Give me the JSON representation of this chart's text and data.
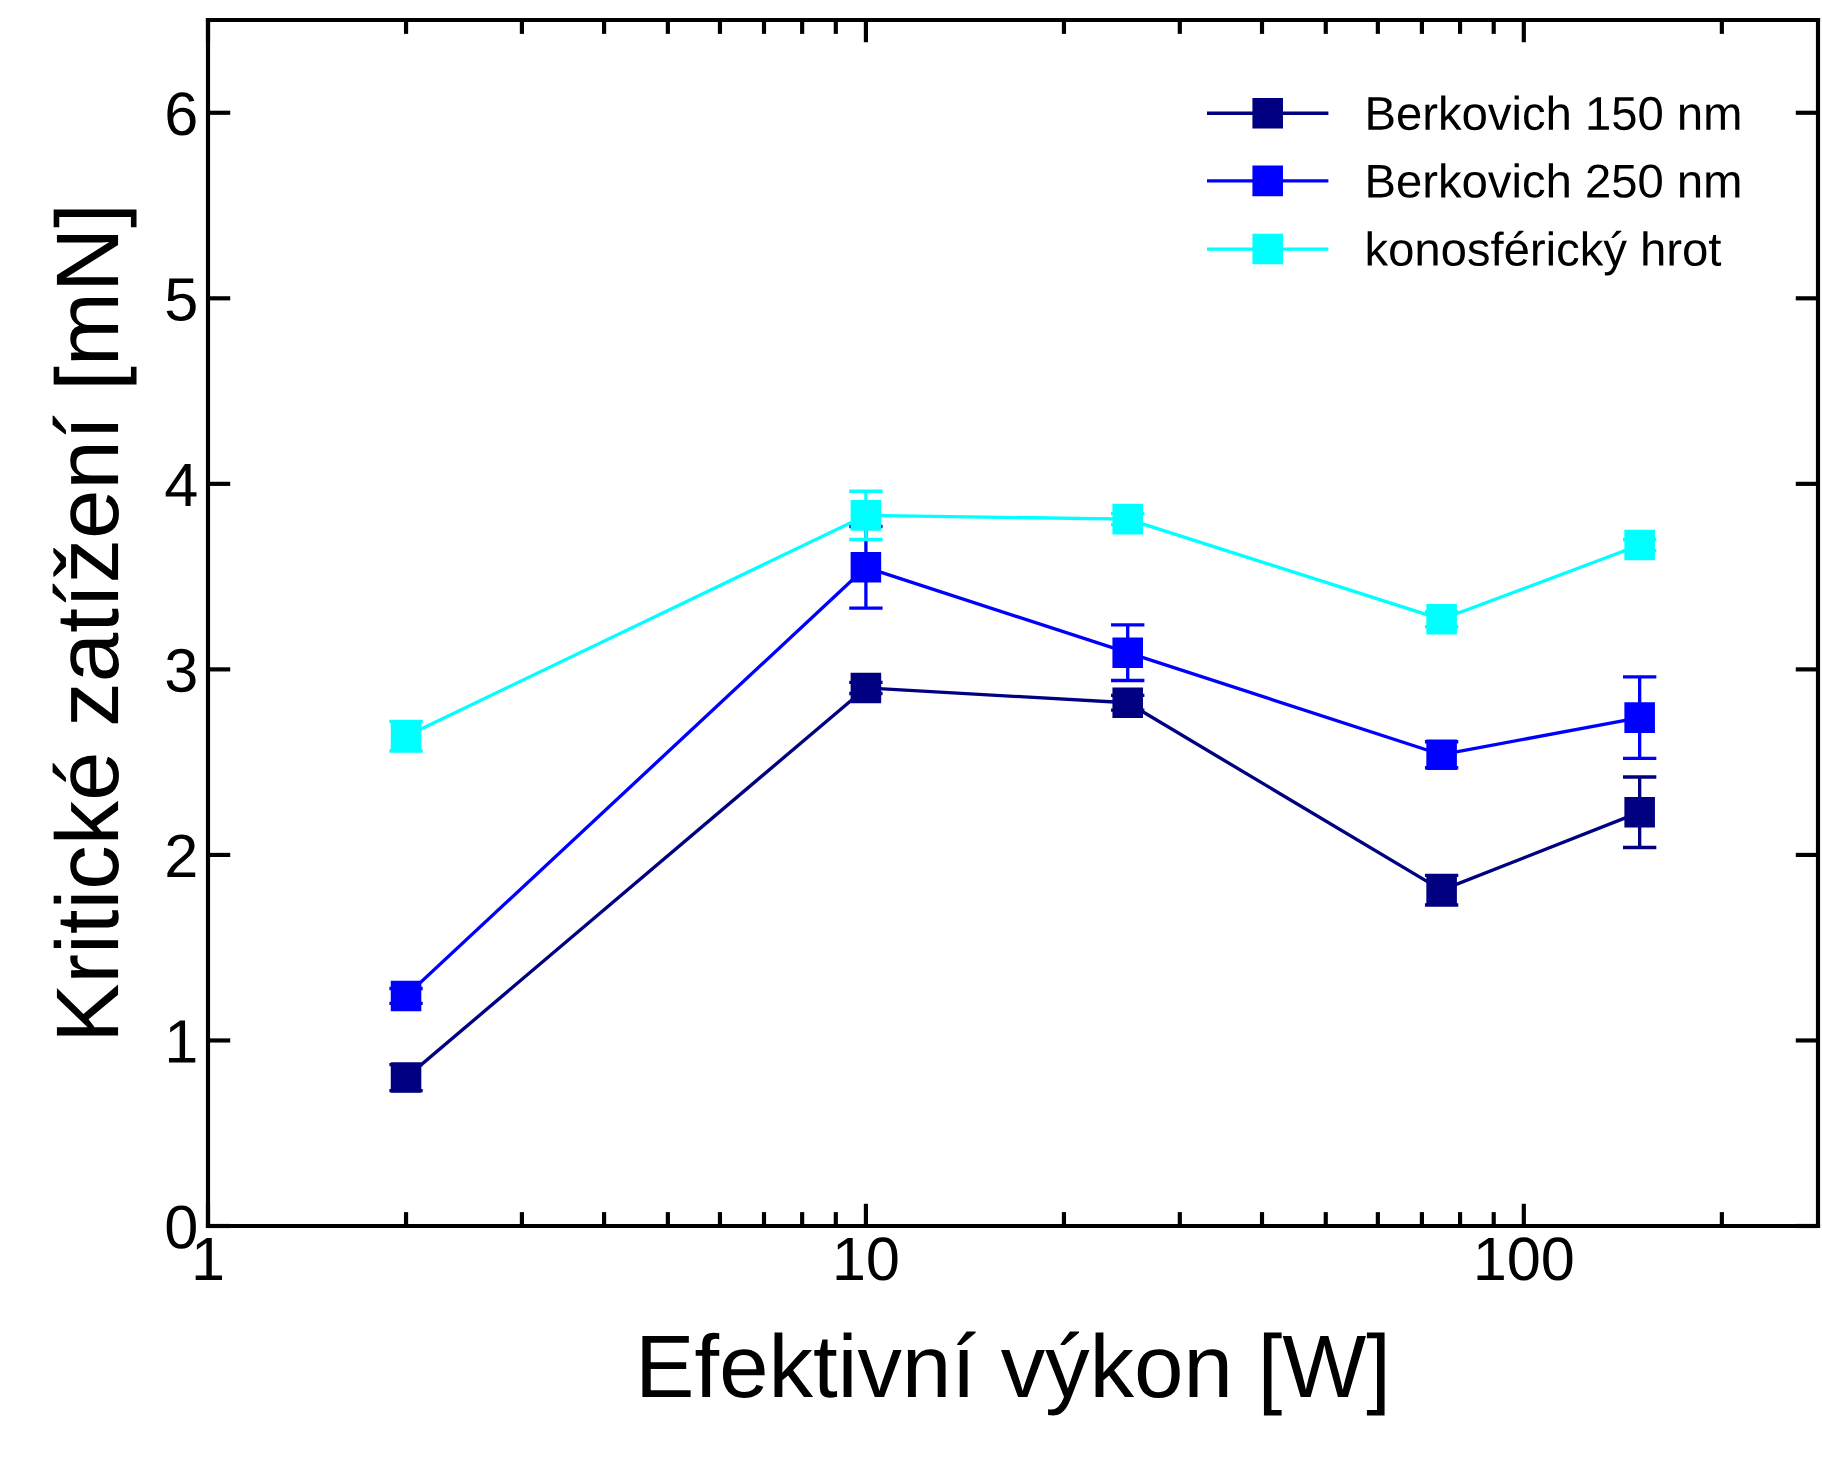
{
  "chart_data": {
    "type": "line",
    "xlabel": "Efektivní výkon [W]",
    "ylabel": "Kritické zatížení [mN]",
    "log": "x",
    "x": [
      2,
      10,
      25,
      75,
      150
    ],
    "xlim": [
      1,
      280
    ],
    "xticks": [
      1,
      10,
      100
    ],
    "ylim": [
      0,
      6.5
    ],
    "yticks": [
      0,
      1,
      2,
      3,
      4,
      5,
      6
    ],
    "marker": "square",
    "line_style": "solid",
    "grid": false,
    "legend": "top right",
    "series": [
      {
        "name": "Berkovich 150 nm",
        "color": "#000080",
        "values": [
          0.8,
          2.9,
          2.82,
          1.81,
          2.23
        ],
        "errors": [
          0.07,
          0.03,
          0.04,
          0.08,
          0.19
        ]
      },
      {
        "name": "Berkovich 250 nm",
        "color": "#0000ff",
        "values": [
          1.24,
          3.55,
          3.09,
          2.54,
          2.74
        ],
        "errors": [
          0.04,
          0.22,
          0.15,
          0.07,
          0.22
        ]
      },
      {
        "name": "konosférický hrot",
        "color": "#00ffff",
        "values": [
          2.64,
          3.83,
          3.81,
          3.27,
          3.67
        ],
        "errors": [
          0.08,
          0.13,
          0.03,
          0.04,
          0.03
        ]
      }
    ]
  }
}
